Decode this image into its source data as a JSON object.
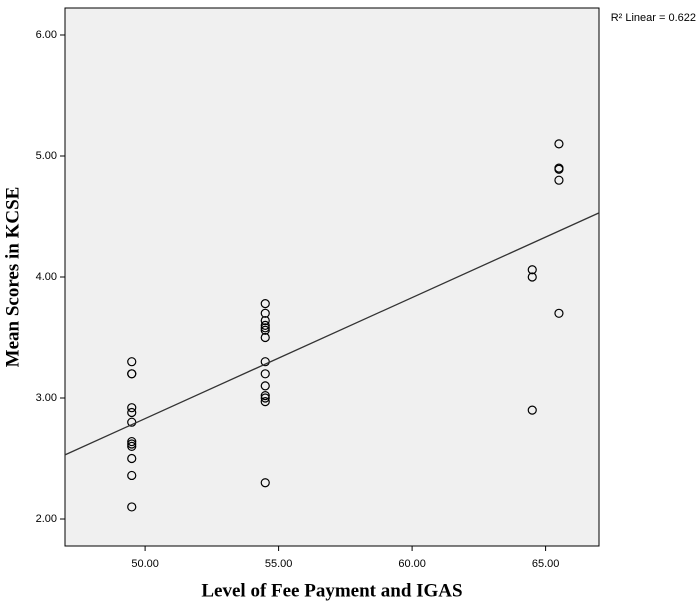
{
  "chart_data": {
    "type": "scatter",
    "x_label": "Level of Fee Payment and IGAS",
    "y_label": "Mean Scores in KCSE",
    "xlim": [
      47,
      67
    ],
    "ylim": [
      1.777,
      6.223
    ],
    "xticks": [
      {
        "value": 50,
        "label": "50.00"
      },
      {
        "value": 55,
        "label": "55.00"
      },
      {
        "value": 60,
        "label": "60.00"
      },
      {
        "value": 65,
        "label": "65.00"
      }
    ],
    "yticks": [
      {
        "value": 2,
        "label": "2.00"
      },
      {
        "value": 3,
        "label": "3.00"
      },
      {
        "value": 4,
        "label": "4.00"
      },
      {
        "value": 5,
        "label": "5.00"
      },
      {
        "value": 6,
        "label": "6.00"
      }
    ],
    "series": [
      {
        "color": "#000000",
        "x": [
          49.5,
          49.5,
          49.5,
          49.5,
          49.5,
          49.5,
          49.5,
          49.5,
          49.5,
          49.5,
          49.5,
          49.5,
          54.5,
          54.5,
          54.5,
          54.5,
          54.5,
          54.5,
          54.5,
          54.5,
          54.5,
          54.5,
          54.5,
          54.5,
          54.5,
          54.5,
          64.5,
          64.5,
          64.5,
          65.5,
          65.5,
          65.5,
          65.5,
          65.5
        ],
        "values": [
          3.3,
          3.2,
          3.2,
          2.92,
          2.88,
          2.8,
          2.64,
          2.62,
          2.6,
          2.5,
          2.36,
          2.1,
          3.78,
          3.7,
          3.64,
          3.6,
          3.58,
          3.56,
          3.5,
          3.3,
          3.2,
          3.1,
          3.02,
          3.0,
          2.97,
          2.3,
          4.06,
          4.0,
          2.9,
          5.1,
          4.9,
          4.89,
          4.8,
          3.7
        ]
      }
    ],
    "fit_line": {
      "label": "R² Linear = 0.622",
      "color": "#333333",
      "x": [
        47,
        67
      ],
      "values": [
        2.53,
        4.53
      ]
    }
  }
}
